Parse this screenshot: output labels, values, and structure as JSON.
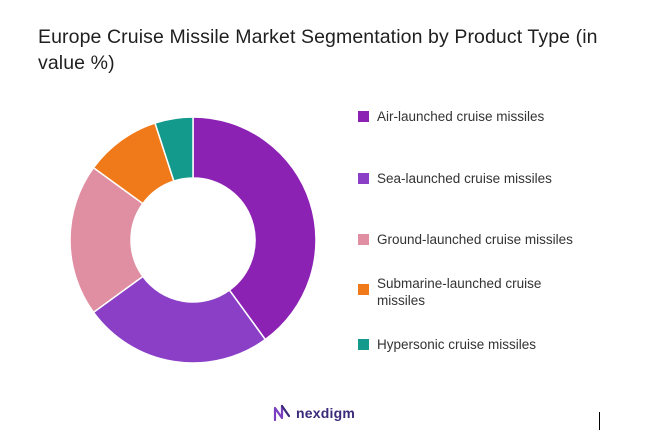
{
  "header": {
    "title": "Europe Cruise Missile Market Segmentation by Product Type (in value %)"
  },
  "chart_data": {
    "type": "pie",
    "donut": true,
    "categories": [
      "Air-launched cruise missiles",
      "Sea-launched cruise missiles",
      "Ground-launched cruise missiles",
      "Submarine-launched cruise missiles",
      "Hypersonic cruise missiles"
    ],
    "values": [
      40,
      25,
      20,
      10,
      5
    ],
    "colors": [
      "#8b22b4",
      "#8a3fc6",
      "#e08ea2",
      "#f07a1a",
      "#139a8c"
    ],
    "legend_position": "right"
  },
  "brand": {
    "name": "nexdigm",
    "icon": "nexdigm-logo-icon",
    "color": "#3b2a7a"
  }
}
